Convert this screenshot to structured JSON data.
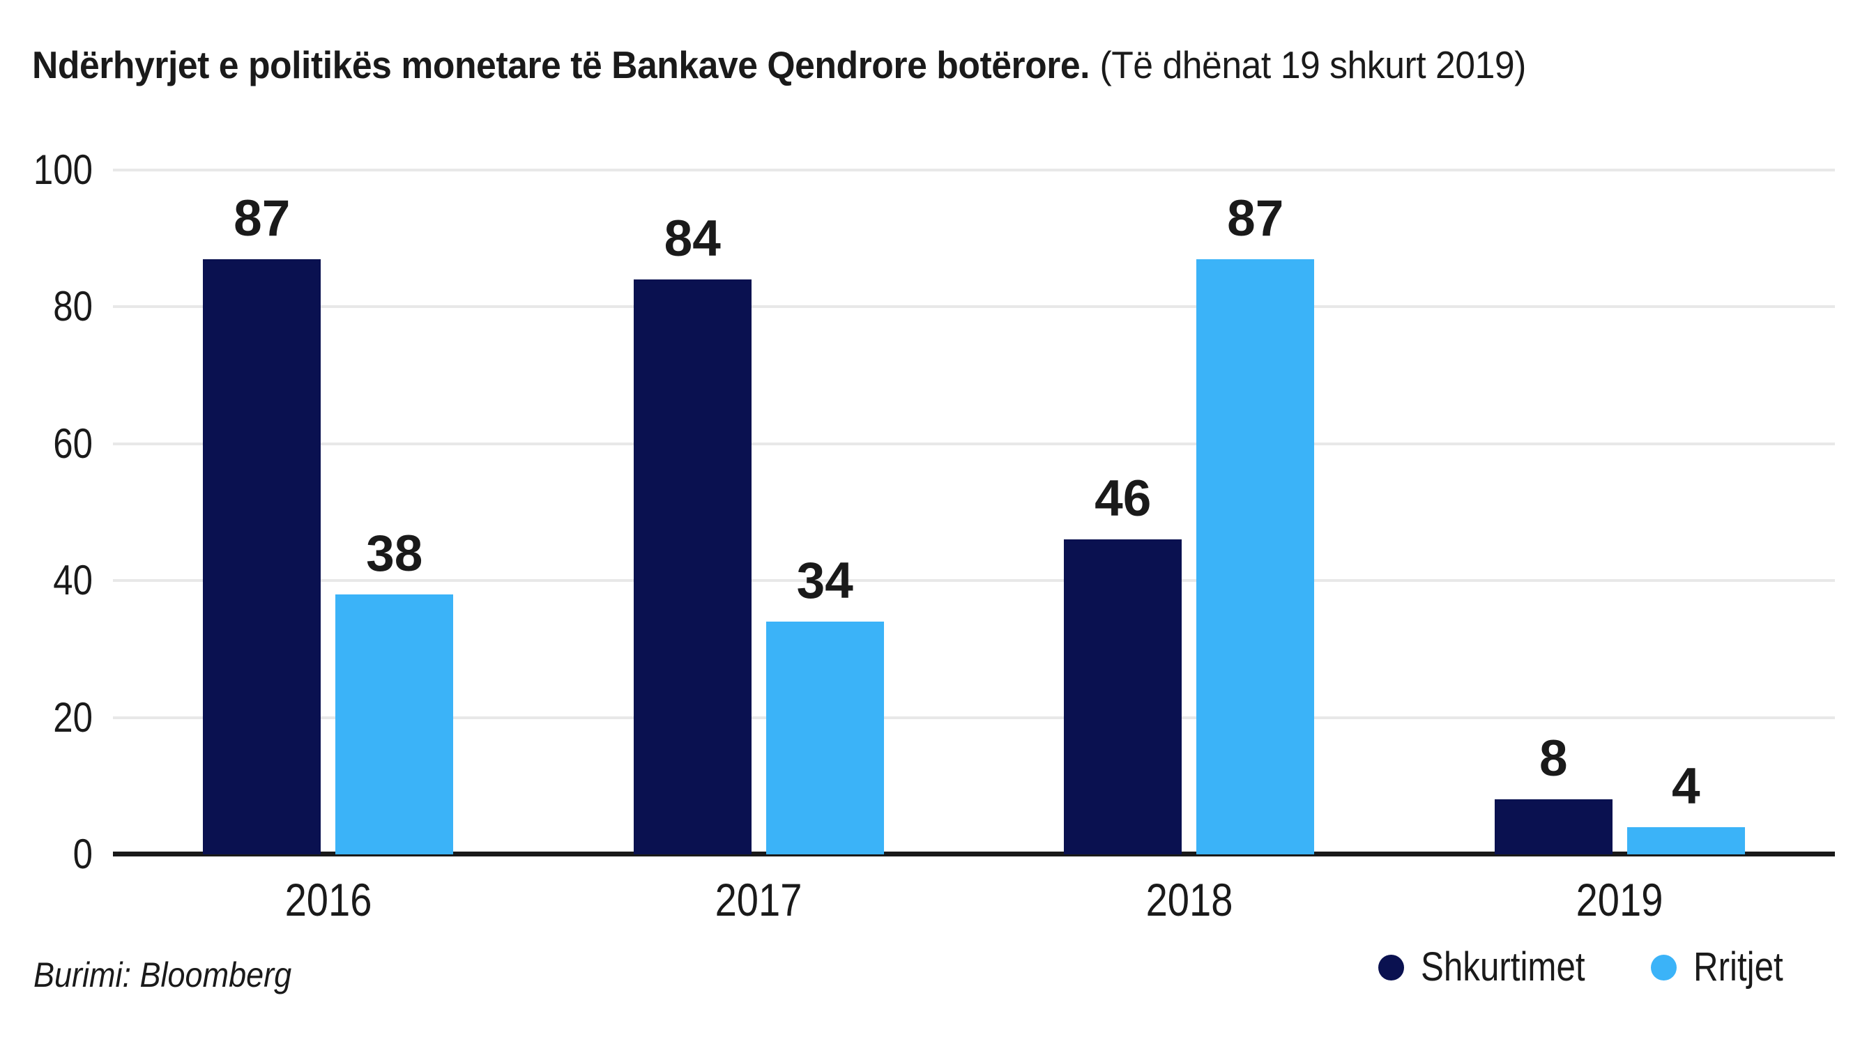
{
  "title": {
    "bold": "Ndërhyrjet e politikës monetare të Bankave Qendrore botërore.",
    "note": "(Të dhënat 19 shkurt 2019)"
  },
  "source": "Burimi: Bloomberg",
  "legend": {
    "items": [
      {
        "label": "Shkurtimet",
        "color": "#0a1150"
      },
      {
        "label": "Rritjet",
        "color": "#3bb3f8"
      }
    ],
    "position": "bottom-right"
  },
  "colors": {
    "series_dark": "#0a1150",
    "series_light": "#3bb3f8",
    "gridline": "#e8e8e8",
    "axis": "#1a1a1a",
    "text": "#1a1a1a",
    "background": "#ffffff"
  },
  "chart_data": {
    "type": "bar",
    "categories": [
      "2016",
      "2017",
      "2018",
      "2019"
    ],
    "series": [
      {
        "name": "Shkurtimet",
        "color": "#0a1150",
        "values": [
          87,
          84,
          46,
          8
        ]
      },
      {
        "name": "Rritjet",
        "color": "#3bb3f8",
        "values": [
          38,
          34,
          87,
          4
        ]
      }
    ],
    "title": "Ndërhyrjet e politikës monetare të Bankave Qendrore botërore. (Të dhënat 19 shkurt 2019)",
    "xlabel": "",
    "ylabel": "",
    "ylim": [
      0,
      100
    ],
    "yticks": [
      0,
      20,
      40,
      60,
      80,
      100
    ],
    "grid": true,
    "value_labels": true,
    "legend_position": "bottom-right"
  }
}
